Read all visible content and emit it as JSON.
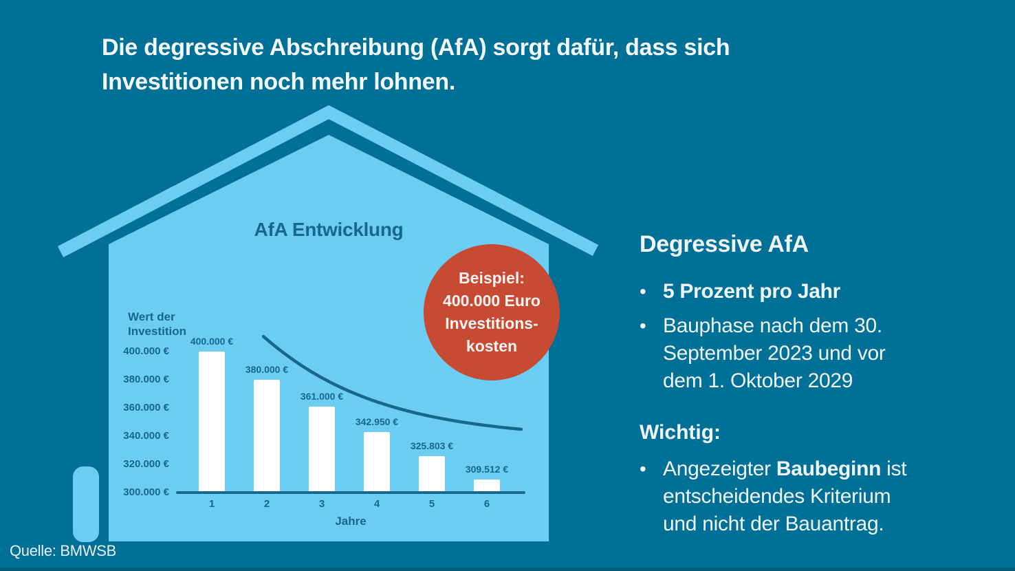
{
  "title": "Die degressive Abschreibung (AfA) sorgt dafür, dass sich\nInvestitionen noch mehr lohnen.",
  "footer": {
    "source": "Quelle: BMWSB"
  },
  "badge": {
    "text": "Beispiel:\n400.000 Euro\nInvestitions-\nkosten"
  },
  "panel": {
    "heading": "Degressive AfA",
    "bullets": [
      {
        "marker": "•",
        "text": "5 Prozent pro Jahr",
        "bold": true
      },
      {
        "marker": "•",
        "text": "Bauphase nach dem 30.\nSeptember 2023 und vor\ndem 1. Oktober 2029",
        "bold": false
      }
    ],
    "wichtig_heading": "Wichtig:",
    "wichtig_bullet": {
      "marker": "•",
      "pre": "Angezeigter ",
      "bold": "Baubeginn",
      "post": " ist\nentscheidendes Kriterium\nund nicht der Bauantrag."
    }
  },
  "chart_data": {
    "type": "bar",
    "title": "AfA Entwicklung",
    "ylabel": "Wert der Investition",
    "ylabel_display": "Wert der\nInvestition",
    "xlabel": "Jahre",
    "categories": [
      "1",
      "2",
      "3",
      "4",
      "5",
      "6"
    ],
    "values": [
      400000,
      380000,
      361000,
      342950,
      325803,
      309512
    ],
    "bar_labels": [
      "400.000 €",
      "380.000 €",
      "361.000 €",
      "342.950 €",
      "325.803 €",
      "309.512 €"
    ],
    "ytick_values": [
      400000,
      380000,
      360000,
      340000,
      320000,
      300000
    ],
    "ytick_labels": [
      "400.000 €",
      "380.000 €",
      "360.000 €",
      "340.000 €",
      "320.000 €",
      "300.000 €"
    ],
    "ylim": [
      300000,
      400000
    ],
    "grid": false,
    "legend": false,
    "bar_color": "#ffffff",
    "annotation": "decreasing trend curve above bars"
  },
  "colors": {
    "background": "#007096",
    "house": "#6bcdf2",
    "chart_ink": "#17688b",
    "accent_red": "#c74a33",
    "text": "#f2f8fa"
  }
}
